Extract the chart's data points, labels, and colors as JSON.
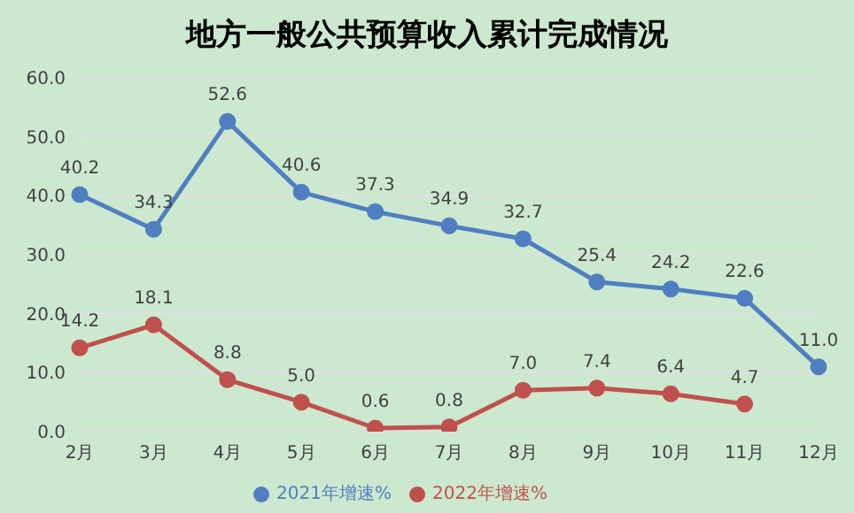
{
  "chart_data": {
    "type": "line",
    "title": "地方一般公共预算收入累计完成情况",
    "categories": [
      "2月",
      "3月",
      "4月",
      "5月",
      "6月",
      "7月",
      "8月",
      "9月",
      "10月",
      "11月",
      "12月"
    ],
    "series": [
      {
        "name": "2021年增速%",
        "color": "#4f7fc0",
        "values": [
          40.2,
          34.3,
          52.6,
          40.6,
          37.3,
          34.9,
          32.7,
          25.4,
          24.2,
          22.6,
          11.0
        ],
        "value_labels": [
          "40.2",
          "34.3",
          "52.6",
          "40.6",
          "37.3",
          "34.9",
          "32.7",
          "25.4",
          "24.2",
          "22.6",
          "11.0"
        ]
      },
      {
        "name": "2022年增速%",
        "color": "#c0504d",
        "values": [
          14.2,
          18.1,
          8.8,
          5.0,
          0.6,
          0.8,
          7.0,
          7.4,
          6.4,
          4.7,
          null
        ],
        "value_labels": [
          "14.2",
          "18.1",
          "8.8",
          "5.0",
          "0.6",
          "0.8",
          "7.0",
          "7.4",
          "6.4",
          "4.7",
          null
        ]
      }
    ],
    "ylim": [
      0,
      60
    ],
    "yticks": [
      {
        "value": 0,
        "label": "0.0"
      },
      {
        "value": 10,
        "label": "10.0"
      },
      {
        "value": 20,
        "label": "20.0"
      },
      {
        "value": 30,
        "label": "30.0"
      },
      {
        "value": 40,
        "label": "40.0"
      },
      {
        "value": 50,
        "label": "50.0"
      },
      {
        "value": 60,
        "label": "60.0"
      }
    ],
    "grid": "y",
    "legend": "bottom",
    "marker": "circle",
    "line_style": "solid"
  }
}
